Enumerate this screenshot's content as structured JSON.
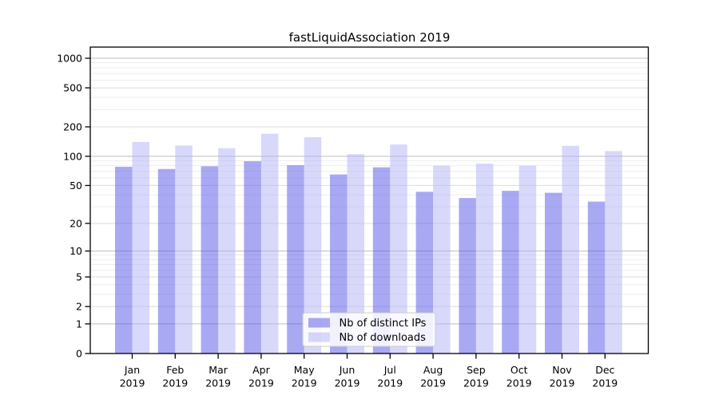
{
  "chart_data": {
    "type": "bar",
    "title": "fastLiquidAssociation 2019",
    "x_axis": {
      "categories": [
        "Jan",
        "Feb",
        "Mar",
        "Apr",
        "May",
        "Jun",
        "Jul",
        "Aug",
        "Sep",
        "Oct",
        "Nov",
        "Dec"
      ],
      "year_label": "2019"
    },
    "y_axis": {
      "scale": "log1p",
      "tick_values": [
        0,
        1,
        2,
        5,
        10,
        20,
        50,
        100,
        200,
        500,
        1000
      ],
      "range": [
        0,
        1300
      ],
      "minor_grid_multiples": [
        3,
        4,
        6,
        7,
        8,
        9
      ]
    },
    "series": [
      {
        "key": "distinct_ips",
        "name": "Nb of distinct IPs",
        "fill": "rgba(84,84,232,0.5)",
        "apparent_color": "#aaaaf4",
        "values": [
          78,
          74,
          79,
          89,
          81,
          65,
          77,
          43,
          37,
          44,
          42,
          34
        ]
      },
      {
        "key": "downloads",
        "name": "Nb of downloads",
        "fill": "rgba(178,178,247,0.5)",
        "apparent_color": "#d9d9fb",
        "values": [
          140,
          129,
          121,
          170,
          157,
          105,
          132,
          80,
          84,
          80,
          128,
          113
        ]
      }
    ],
    "legend": {
      "position": "inside-bottom-center",
      "items": [
        "Nb of distinct IPs",
        "Nb of downloads"
      ]
    },
    "grid": {
      "pow10_color": "#bdbdbd",
      "major_color": "#dcdcdc",
      "minor_color": "#ededed"
    },
    "axis_color": "#000000"
  }
}
